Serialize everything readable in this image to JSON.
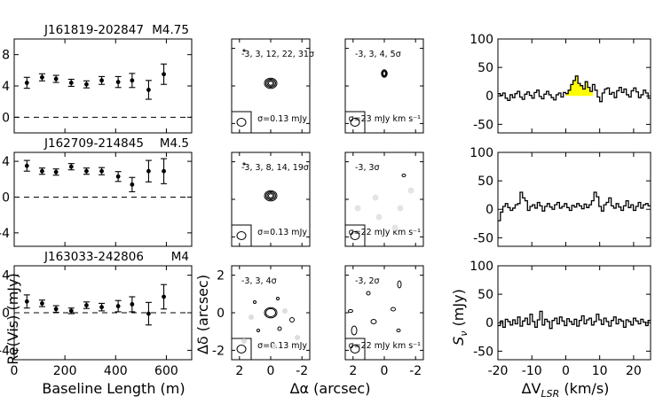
{
  "figure": {
    "panels_left_xlabel": "Baseline Length (m)",
    "panels_left_ylabel": "Re(Vis) (mJy)",
    "maps_xlabel": "Δα (arcsec)",
    "maps_ylabel": "Δδ (arcsec)",
    "spec_xlabel_prefix": "ΔV",
    "spec_xlabel_sub": "LSR",
    "spec_xlabel_suffix": " (km/s)",
    "spec_ylabel_main": "S",
    "spec_ylabel_sub": "ν",
    "spec_ylabel_suffix": " (mJy)",
    "map_ticks": [
      "2",
      "0",
      "-2"
    ],
    "baseline_ticks": [
      "0",
      "200",
      "400",
      "600"
    ],
    "vel_ticks": [
      "-20",
      "-10",
      "0",
      "10",
      "20"
    ],
    "flux_ticks": [
      "100",
      "50",
      "0",
      "-50"
    ]
  },
  "chart_data": [
    {
      "type": "scatter",
      "source": "J161819-202847",
      "spectral_type": "M4.75",
      "xlabel": "Baseline Length (m)",
      "ylabel": "Re(Vis) (mJy)",
      "xlim": [
        0,
        700
      ],
      "ylim": [
        -2,
        10
      ],
      "yticks": [
        "8",
        "4",
        "0"
      ],
      "x": [
        50,
        110,
        165,
        225,
        285,
        345,
        410,
        465,
        530,
        590
      ],
      "y": [
        4.4,
        5.1,
        4.9,
        4.4,
        4.2,
        4.7,
        4.5,
        4.7,
        3.5,
        5.5
      ],
      "yerr": [
        0.7,
        0.45,
        0.45,
        0.45,
        0.45,
        0.5,
        0.7,
        0.9,
        1.2,
        1.3
      ],
      "continuum_map": {
        "contours": "-3, 3, 12, 22, 31σ",
        "noise": "σ=0.13 mJy"
      },
      "line_map": {
        "contours": "-3, 3, 4, 5σ",
        "noise": "σ=23 mJy km s⁻¹"
      },
      "spectrum": {
        "type": "line",
        "xlabel": "ΔV_LSR (km/s)",
        "ylabel": "S_ν (mJy)",
        "xlim": [
          -20,
          25
        ],
        "ylim": [
          -65,
          100
        ],
        "highlight_range": [
          0,
          8
        ],
        "highlight_color": "#ffff00",
        "values": [
          4,
          1,
          5,
          -4,
          -8,
          2,
          -3,
          4,
          8,
          -2,
          -6,
          3,
          7,
          1,
          -4,
          6,
          10,
          -1,
          -5,
          3,
          8,
          2,
          -3,
          -7,
          2,
          5,
          -2,
          6,
          4,
          10,
          20,
          27,
          35,
          22,
          18,
          12,
          25,
          15,
          8,
          20,
          10,
          -2,
          -10,
          5,
          12,
          14,
          3,
          6,
          -3,
          9,
          15,
          6,
          12,
          2,
          -2,
          9,
          14,
          7,
          -3,
          2,
          10,
          5,
          -4
        ]
      }
    },
    {
      "type": "scatter",
      "source": "J162709-214845",
      "spectral_type": "M4.5",
      "xlabel": "Baseline Length (m)",
      "ylabel": "Re(Vis) (mJy)",
      "xlim": [
        0,
        700
      ],
      "ylim": [
        -5.5,
        5
      ],
      "yticks": [
        "4",
        "0",
        "-4"
      ],
      "x": [
        50,
        110,
        165,
        225,
        285,
        345,
        410,
        465,
        530,
        590
      ],
      "y": [
        3.5,
        2.9,
        2.8,
        3.4,
        2.9,
        2.9,
        2.3,
        1.4,
        2.9,
        2.9
      ],
      "yerr": [
        0.6,
        0.35,
        0.35,
        0.35,
        0.35,
        0.4,
        0.55,
        0.8,
        1.2,
        1.4
      ],
      "continuum_map": {
        "contours": "-3, 3, 8, 14, 19σ",
        "noise": "σ=0.13 mJy"
      },
      "line_map": {
        "contours": "-3, 3σ",
        "noise": "σ=22 mJy km s⁻¹"
      },
      "spectrum": {
        "type": "line",
        "xlabel": "ΔV_LSR (km/s)",
        "ylabel": "S_ν (mJy)",
        "xlim": [
          -20,
          25
        ],
        "ylim": [
          -65,
          100
        ],
        "values": [
          -20,
          -5,
          5,
          10,
          3,
          -2,
          2,
          8,
          10,
          30,
          20,
          15,
          -2,
          5,
          8,
          2,
          12,
          6,
          -3,
          5,
          10,
          4,
          0,
          8,
          12,
          2,
          5,
          10,
          3,
          -2,
          7,
          4,
          10,
          6,
          1,
          9,
          3,
          8,
          15,
          30,
          22,
          5,
          -3,
          8,
          12,
          20,
          6,
          2,
          10,
          4,
          -2,
          6,
          15,
          3,
          8,
          -2,
          5,
          12,
          2,
          8,
          10,
          6
        ]
      }
    },
    {
      "type": "scatter",
      "source": "J163033-242806",
      "spectral_type": "M4",
      "xlabel": "Baseline Length (m)",
      "ylabel": "Re(Vis) (mJy)",
      "xlim": [
        0,
        700
      ],
      "ylim": [
        -5,
        5
      ],
      "yticks": [
        "4",
        "0",
        "-4"
      ],
      "x": [
        50,
        110,
        165,
        225,
        285,
        345,
        410,
        465,
        530,
        590
      ],
      "y": [
        1.2,
        1.0,
        0.4,
        0.2,
        0.8,
        0.6,
        0.7,
        0.9,
        -0.1,
        1.7
      ],
      "yerr": [
        0.7,
        0.35,
        0.35,
        0.3,
        0.35,
        0.4,
        0.6,
        0.8,
        1.2,
        1.3
      ],
      "continuum_map": {
        "contours": "-3, 3, 4σ",
        "noise": "σ=0.13 mJy"
      },
      "line_map": {
        "contours": "-3, 2σ",
        "noise": "σ=22 mJy km s⁻¹"
      },
      "spectrum": {
        "type": "line",
        "xlabel": "ΔV_LSR (km/s)",
        "ylabel": "S_ν (mJy)",
        "xlim": [
          -20,
          25
        ],
        "ylim": [
          -65,
          100
        ],
        "values": [
          -5,
          3,
          -8,
          6,
          2,
          -4,
          5,
          -2,
          10,
          -6,
          3,
          8,
          -3,
          15,
          2,
          -8,
          5,
          20,
          -4,
          6,
          2,
          -10,
          4,
          8,
          -2,
          10,
          3,
          -5,
          7,
          2,
          -3,
          6,
          -6,
          4,
          12,
          -2,
          5,
          8,
          -4,
          2,
          15,
          5,
          -3,
          8,
          2,
          -6,
          4,
          10,
          -2,
          6,
          3,
          -8,
          5,
          2,
          -4,
          8,
          3,
          -2,
          6,
          1,
          -5,
          4
        ]
      }
    }
  ]
}
